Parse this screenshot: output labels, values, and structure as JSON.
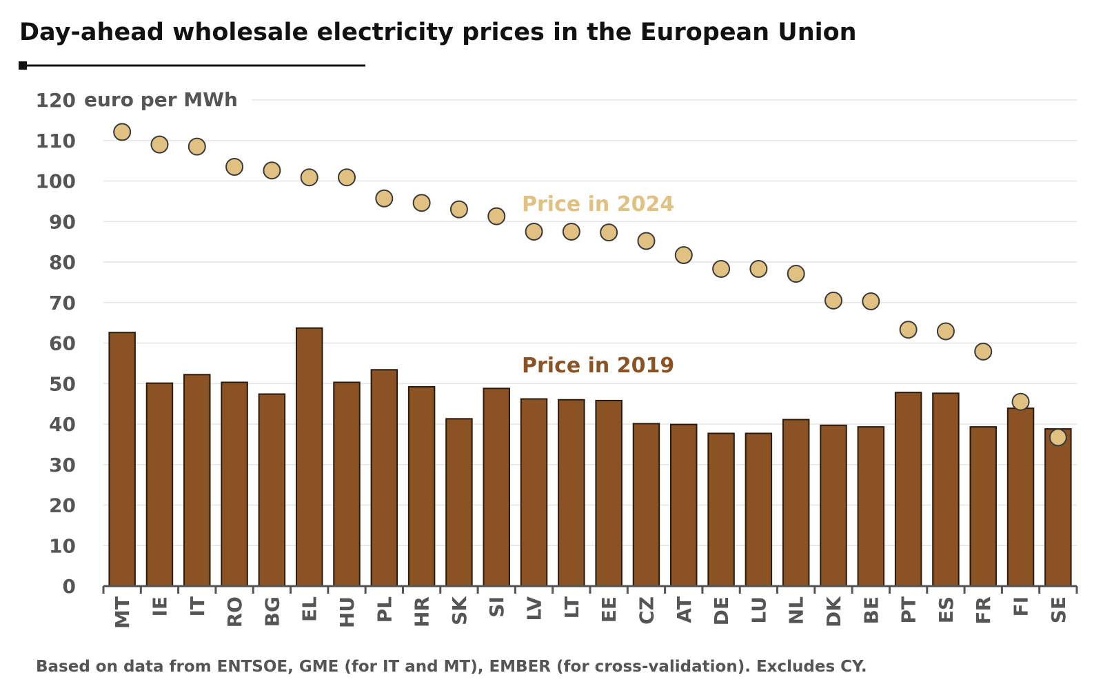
{
  "chart_data": {
    "type": "bar",
    "title": "Day-ahead wholesale electricity prices in the European Union",
    "unit_label": "euro per MWh",
    "source": "Based on data from ENTSOE, GME (for IT and MT), EMBER (for cross-validation). Excludes CY.",
    "ylim": [
      0,
      120
    ],
    "yticks": [
      0,
      10,
      20,
      30,
      40,
      50,
      60,
      70,
      80,
      90,
      100,
      110,
      120
    ],
    "grid": true,
    "categories": [
      "MT",
      "IE",
      "IT",
      "RO",
      "BG",
      "EL",
      "HU",
      "PL",
      "HR",
      "SK",
      "SI",
      "LV",
      "LT",
      "EE",
      "CZ",
      "AT",
      "DE",
      "LU",
      "NL",
      "DK",
      "BE",
      "PT",
      "ES",
      "FR",
      "FI",
      "SE"
    ],
    "series": [
      {
        "name": "Price in 2019",
        "mark": "bar",
        "color": "#8B5224",
        "values": [
          62.6,
          50.1,
          52.2,
          50.3,
          47.4,
          63.7,
          50.3,
          53.4,
          49.2,
          41.3,
          48.8,
          46.2,
          46.0,
          45.8,
          40.1,
          39.9,
          37.7,
          37.7,
          41.1,
          39.7,
          39.3,
          47.8,
          47.6,
          39.3,
          43.9,
          38.8
        ]
      },
      {
        "name": "Price in 2024",
        "mark": "point",
        "color": "#E0C181",
        "values": [
          112.1,
          109.0,
          108.5,
          103.5,
          102.6,
          100.9,
          100.9,
          95.7,
          94.6,
          93.0,
          91.3,
          87.5,
          87.5,
          87.3,
          85.2,
          81.7,
          78.3,
          78.3,
          77.1,
          70.5,
          70.3,
          63.3,
          62.9,
          57.9,
          45.5,
          36.7
        ]
      }
    ]
  }
}
